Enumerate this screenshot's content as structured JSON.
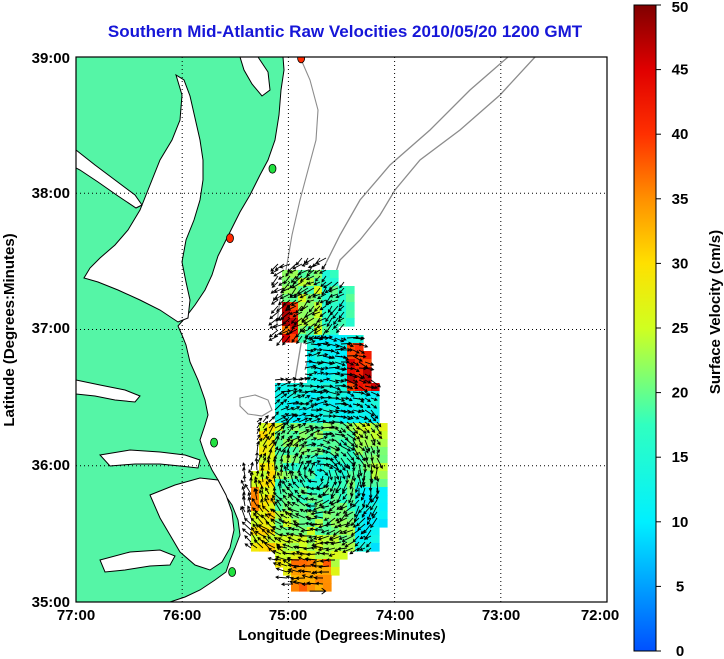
{
  "title": "Southern Mid-Atlantic Raw Velocities 2010/05/20 1200 GMT",
  "xlabel": "Longitude (Degrees:Minutes)",
  "ylabel": "Latitude (Degrees:Minutes)",
  "x_ticks": [
    "77:00",
    "76:00",
    "75:00",
    "74:00",
    "73:00",
    "72:00"
  ],
  "y_ticks": [
    "39:00",
    "38:00",
    "37:00",
    "36:00",
    "35:00"
  ],
  "colorbar": {
    "label": "Surface Velocity (cm/s)",
    "ticks": [
      "0",
      "5",
      "10",
      "15",
      "20",
      "25",
      "30",
      "35",
      "40",
      "45",
      "50"
    ],
    "min": 0,
    "max": 50
  },
  "colors": {
    "land": "#55f5a6",
    "title": "#1616d8",
    "coast": "#000000",
    "bathymetry": "#8c8c8c"
  },
  "stations": [
    {
      "lon": 74.88,
      "lat": 38.99,
      "color": "#ff2a00"
    },
    {
      "lon": 75.15,
      "lat": 38.18,
      "color": "#22e040"
    },
    {
      "lon": 75.55,
      "lat": 37.67,
      "color": "#ff2a00"
    },
    {
      "lon": 75.7,
      "lat": 36.17,
      "color": "#22e040"
    },
    {
      "lon": 75.53,
      "lat": 35.22,
      "color": "#22e040"
    }
  ],
  "scale_arrow": {
    "lon": 74.8,
    "lat": 35.08
  }
}
